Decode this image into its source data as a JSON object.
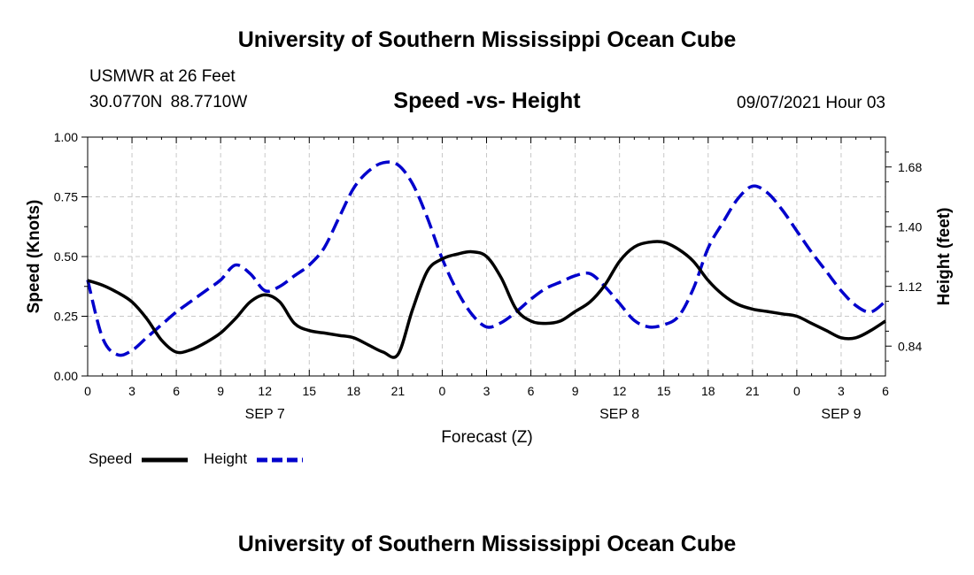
{
  "header": {
    "top_title": "University of Southern Mississippi Ocean Cube",
    "bottom_title": "University of Southern Mississippi Ocean Cube",
    "station_name": "USMWR at 26 Feet",
    "station_coords": "30.0770N 88.7710W",
    "chart_title": "Speed -vs- Height",
    "date_label": "09/07/2021 Hour 03"
  },
  "legend": {
    "speed_label": "Speed",
    "height_label": "Height"
  },
  "chart_data": {
    "type": "line",
    "title": "Speed -vs- Height",
    "xlabel": "Forecast (Z)",
    "ylabel": "Speed (Knots)",
    "y2label": "Height (feet)",
    "x_range_hours": [
      0,
      54
    ],
    "ylim": [
      0,
      1
    ],
    "y2lim": [
      0.7,
      1.82
    ],
    "y_ticks": [
      0,
      0.25,
      0.5,
      0.75,
      1
    ],
    "y_tick_labels": [
      "0.00",
      "0.25",
      "0.50",
      "0.75",
      "1.00"
    ],
    "y2_ticks": [
      0.84,
      1.12,
      1.4,
      1.68
    ],
    "y2_tick_labels": [
      "0.84",
      "1.12",
      "1.40",
      "1.68"
    ],
    "x_ticks_hours": [
      0,
      3,
      6,
      9,
      12,
      15,
      18,
      21,
      24,
      27,
      30,
      33,
      36,
      39,
      42,
      45,
      48,
      51,
      54
    ],
    "x_tick_labels": [
      "0",
      "3",
      "6",
      "9",
      "12",
      "15",
      "18",
      "21",
      "0",
      "3",
      "6",
      "9",
      "12",
      "15",
      "18",
      "21",
      "0",
      "3",
      "6"
    ],
    "date_labels": [
      {
        "hour": 12,
        "label": "SEP 7"
      },
      {
        "hour": 36,
        "label": "SEP 8"
      },
      {
        "hour": 51,
        "label": "SEP 9"
      }
    ],
    "grid": true,
    "colors": {
      "speed": "#000000",
      "height": "#0000cc",
      "grid": "#c8c8c8"
    },
    "series": [
      {
        "name": "Speed",
        "axis": "left",
        "style": "solid",
        "x": [
          0,
          1,
          2,
          3,
          4,
          5,
          6,
          7,
          8,
          9,
          10,
          11,
          12,
          13,
          14,
          15,
          16,
          17,
          18,
          19,
          20,
          21,
          22,
          23,
          24,
          25,
          26,
          27,
          28,
          29,
          30,
          31,
          32,
          33,
          34,
          35,
          36,
          37,
          38,
          39,
          40,
          41,
          42,
          43,
          44,
          45,
          46,
          47,
          48,
          49,
          50,
          51,
          52,
          53,
          54
        ],
        "values": [
          0.4,
          0.38,
          0.35,
          0.31,
          0.24,
          0.15,
          0.1,
          0.11,
          0.14,
          0.18,
          0.24,
          0.31,
          0.34,
          0.31,
          0.22,
          0.19,
          0.18,
          0.17,
          0.16,
          0.13,
          0.1,
          0.09,
          0.28,
          0.44,
          0.49,
          0.51,
          0.52,
          0.5,
          0.41,
          0.28,
          0.23,
          0.22,
          0.23,
          0.27,
          0.31,
          0.38,
          0.48,
          0.54,
          0.56,
          0.56,
          0.53,
          0.48,
          0.4,
          0.34,
          0.3,
          0.28,
          0.27,
          0.26,
          0.25,
          0.22,
          0.19,
          0.16,
          0.16,
          0.19,
          0.23
        ]
      },
      {
        "name": "Height",
        "axis": "right",
        "style": "dashed",
        "x": [
          0,
          1,
          2,
          3,
          4,
          5,
          6,
          7,
          8,
          9,
          10,
          11,
          12,
          13,
          14,
          15,
          16,
          17,
          18,
          19,
          20,
          21,
          22,
          23,
          24,
          25,
          26,
          27,
          28,
          29,
          30,
          31,
          32,
          33,
          34,
          35,
          36,
          37,
          38,
          39,
          40,
          41,
          42,
          43,
          44,
          45,
          46,
          47,
          48,
          49,
          50,
          51,
          52,
          53,
          54
        ],
        "values": [
          1.15,
          0.88,
          0.8,
          0.82,
          0.88,
          0.94,
          1.0,
          1.05,
          1.1,
          1.15,
          1.22,
          1.18,
          1.1,
          1.12,
          1.17,
          1.22,
          1.3,
          1.44,
          1.58,
          1.66,
          1.7,
          1.69,
          1.6,
          1.44,
          1.25,
          1.1,
          0.99,
          0.93,
          0.95,
          1.0,
          1.06,
          1.11,
          1.14,
          1.17,
          1.18,
          1.12,
          1.04,
          0.96,
          0.93,
          0.94,
          0.98,
          1.11,
          1.3,
          1.42,
          1.53,
          1.59,
          1.56,
          1.48,
          1.38,
          1.28,
          1.19,
          1.1,
          1.03,
          1.0,
          1.05
        ]
      }
    ]
  }
}
